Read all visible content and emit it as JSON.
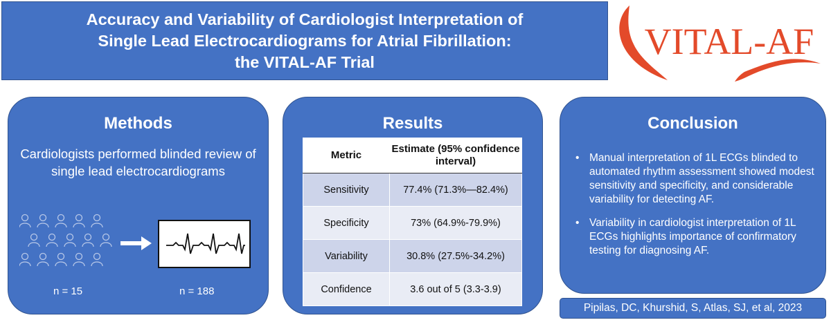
{
  "header": {
    "title_lines": [
      "Accuracy and Variability of Cardiologist Interpretation of",
      "Single Lead Electrocardiograms for Atrial Fibrillation:",
      "the VITAL-AF Trial"
    ],
    "logo_text": "VITAL-AF",
    "logo_color": "#e34a2a"
  },
  "methods": {
    "title": "Methods",
    "text": "Cardiologists performed blinded review of single lead electrocardiograms",
    "n_cardiologists": "n = 15",
    "n_ecgs": "n = 188"
  },
  "results": {
    "title": "Results",
    "columns": [
      "Metric",
      "Estimate (95% confidence interval)"
    ],
    "rows": [
      {
        "metric": "Sensitivity",
        "estimate": "77.4% (71.3%—82.4%)"
      },
      {
        "metric": "Specificity",
        "estimate": "73% (64.9%-79.9%)"
      },
      {
        "metric": "Variability",
        "estimate": "30.8% (27.5%-34.2%)"
      },
      {
        "metric": "Confidence",
        "estimate": "3.6 out of 5 (3.3-3.9)"
      }
    ]
  },
  "conclusion": {
    "title": "Conclusion",
    "points": [
      "Manual interpretation of 1L ECGs blinded to automated rhythm assessment showed modest sensitivity and specificity, and considerable variability for detecting AF.",
      "Variability in cardiologist interpretation of 1L ECGs highlights importance of confirmatory testing for diagnosing AF."
    ],
    "bullet": "•"
  },
  "citation": "Pipilas, DC, Khurshid, S, Atlas, SJ, et al, 2023",
  "colors": {
    "panel": "#4472c4",
    "panel_border": "#2f528f",
    "row_dark": "#cdd4ea",
    "row_light": "#e9ecf5"
  }
}
